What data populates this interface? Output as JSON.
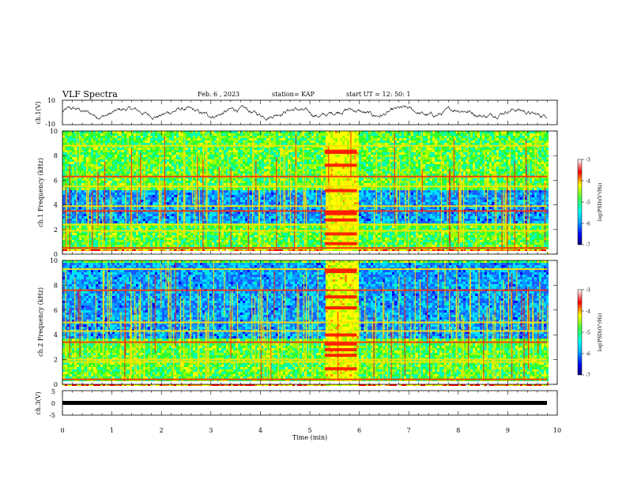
{
  "header": {
    "title": "VLF Spectra",
    "date": "Feb. 6 , 2023",
    "station": "station= KAP",
    "start": "start UT = 12: 50: 1"
  },
  "chart_data": [
    {
      "type": "line",
      "panel": "ch1-waveform",
      "ylabel": "ch.1(V)",
      "ylim": [
        -10,
        10
      ],
      "yticks": [
        "10",
        "-10"
      ],
      "xlim": [
        0,
        10
      ],
      "series": [
        {
          "values_note": "noisy oscillation between about -6 and 5 V over 0-9.8 min"
        }
      ]
    },
    {
      "type": "heatmap",
      "panel": "ch1-spectrogram",
      "ylabel": "ch.1 Frequency (kHz)",
      "ylim": [
        0,
        10
      ],
      "yticks": [
        "0",
        "2",
        "4",
        "6",
        "8",
        "10"
      ],
      "xlim": [
        0,
        10
      ],
      "x_end": 9.8,
      "burst_start": 5.3,
      "burst_end": 5.95,
      "bands_khz": [
        0.5,
        1.9,
        2.4,
        3.5,
        3.9,
        5.5,
        6.3,
        8.8
      ],
      "colorbar": {
        "label": "log(PSD)(V²/Hz)",
        "range": [
          -7,
          -3
        ],
        "ticks": [
          "-3",
          "-4",
          "-5",
          "-6",
          "-7"
        ]
      }
    },
    {
      "type": "heatmap",
      "panel": "ch2-spectrogram",
      "ylabel": "ch.2 Frequency (kHz)",
      "ylim": [
        0,
        10
      ],
      "yticks": [
        "0",
        "2",
        "4",
        "6",
        "8",
        "10"
      ],
      "xlim": [
        0,
        10
      ],
      "x_end": 9.8,
      "burst_start": 5.3,
      "burst_end": 5.95,
      "bands_khz": [
        0.4,
        1.8,
        2.0,
        3.4,
        4.3,
        5.0,
        7.6,
        9.3
      ],
      "colorbar": {
        "label": "log(PSD)(V²/Hz)",
        "range": [
          -7,
          -3
        ],
        "ticks": [
          "-3",
          "-4",
          "-5",
          "-6",
          "-7"
        ]
      }
    },
    {
      "type": "line",
      "panel": "ch3-waveform",
      "ylabel": "ch.3(V)",
      "ylim": [
        -5,
        5
      ],
      "yticks": [
        "5",
        "0",
        "-5"
      ],
      "xlim": [
        0,
        10
      ],
      "xticks": [
        "0",
        "1",
        "2",
        "3",
        "4",
        "5",
        "6",
        "7",
        "8",
        "9",
        "10"
      ],
      "xlabel": "Time (min)",
      "series": [
        {
          "values_note": "flat thick trace near -1 V from 0 to 9.8 min"
        }
      ]
    }
  ]
}
